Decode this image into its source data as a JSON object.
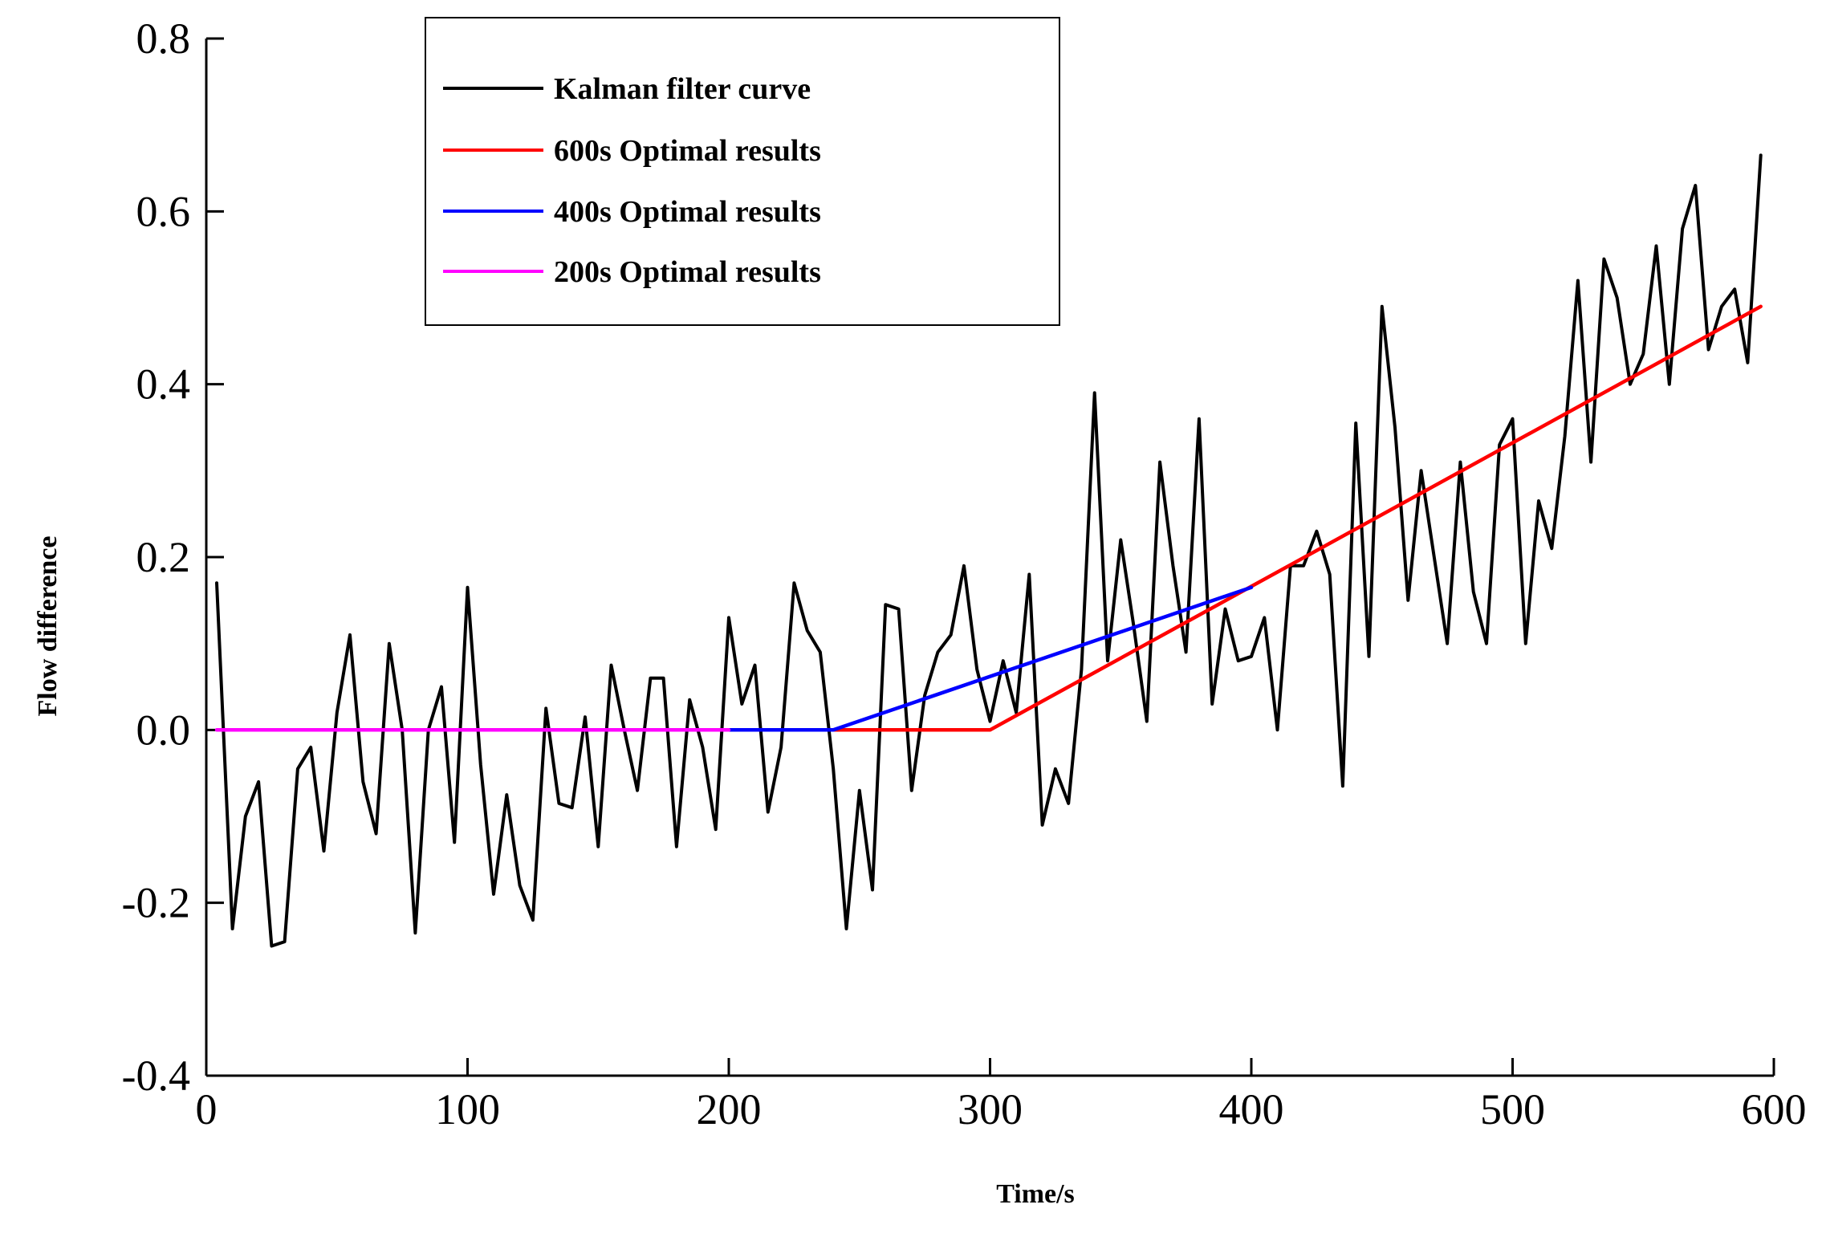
{
  "chart_data": {
    "type": "line",
    "title": "",
    "xlabel": "Time/s",
    "ylabel": "Flow difference",
    "xlim": [
      0,
      600
    ],
    "ylim": [
      -0.4,
      0.8
    ],
    "xticks": [
      0,
      100,
      200,
      300,
      400,
      500,
      600
    ],
    "xtick_labels": [
      "0",
      "100",
      "200",
      "300",
      "400",
      "500",
      "600"
    ],
    "yticks": [
      -0.4,
      -0.2,
      0.0,
      0.2,
      0.4,
      0.6,
      0.8
    ],
    "ytick_labels": [
      "-0.4",
      "-0.2",
      "0.0",
      "0.2",
      "0.4",
      "0.6",
      "0.8"
    ],
    "grid": false,
    "legend_position": "top-left",
    "series": [
      {
        "name": "Kalman filter curve",
        "color": "#000000",
        "x": [
          4,
          10,
          15,
          20,
          25,
          30,
          35,
          40,
          45,
          50,
          55,
          60,
          65,
          70,
          75,
          80,
          85,
          90,
          95,
          100,
          105,
          110,
          115,
          120,
          125,
          130,
          135,
          140,
          145,
          150,
          155,
          160,
          165,
          170,
          175,
          180,
          185,
          190,
          195,
          200,
          205,
          210,
          215,
          220,
          225,
          230,
          235,
          240,
          245,
          250,
          255,
          260,
          265,
          270,
          275,
          280,
          285,
          290,
          295,
          300,
          305,
          310,
          315,
          320,
          325,
          330,
          335,
          340,
          345,
          350,
          355,
          360,
          365,
          370,
          375,
          380,
          385,
          390,
          395,
          400,
          405,
          410,
          415,
          420,
          425,
          430,
          435,
          440,
          445,
          450,
          455,
          460,
          465,
          470,
          475,
          480,
          485,
          490,
          495,
          500,
          505,
          510,
          515,
          520,
          525,
          530,
          535,
          540,
          545,
          550,
          555,
          560,
          565,
          570,
          575,
          580,
          585,
          590,
          595
        ],
        "y": [
          0.17,
          -0.23,
          -0.1,
          -0.06,
          -0.25,
          -0.245,
          -0.045,
          -0.02,
          -0.14,
          0.02,
          0.11,
          -0.06,
          -0.12,
          0.1,
          0.0,
          -0.235,
          0.0,
          0.05,
          -0.13,
          0.165,
          -0.04,
          -0.19,
          -0.075,
          -0.18,
          -0.22,
          0.025,
          -0.085,
          -0.09,
          0.015,
          -0.135,
          0.075,
          0.0,
          -0.07,
          0.06,
          0.06,
          -0.135,
          0.035,
          -0.02,
          -0.115,
          0.13,
          0.03,
          0.075,
          -0.095,
          -0.02,
          0.17,
          0.115,
          0.09,
          -0.045,
          -0.23,
          -0.07,
          -0.185,
          0.145,
          0.14,
          -0.07,
          0.04,
          0.09,
          0.11,
          0.19,
          0.07,
          0.01,
          0.08,
          0.02,
          0.18,
          -0.11,
          -0.045,
          -0.085,
          0.07,
          0.39,
          0.08,
          0.22,
          0.12,
          0.01,
          0.31,
          0.19,
          0.09,
          0.36,
          0.03,
          0.14,
          0.08,
          0.085,
          0.13,
          0.0,
          0.19,
          0.19,
          0.23,
          0.18,
          -0.065,
          0.355,
          0.085,
          0.49,
          0.35,
          0.15,
          0.3,
          0.2,
          0.1,
          0.31,
          0.16,
          0.1,
          0.33,
          0.36,
          0.1,
          0.265,
          0.21,
          0.34,
          0.52,
          0.31,
          0.545,
          0.5,
          0.4,
          0.435,
          0.56,
          0.4,
          0.58,
          0.63,
          0.44,
          0.49,
          0.51,
          0.425,
          0.665
        ]
      },
      {
        "name": "600s Optimal results",
        "color": "#ff0000",
        "x": [
          240,
          300,
          595
        ],
        "y": [
          0.0,
          0.0,
          0.49
        ]
      },
      {
        "name": "400s Optimal results",
        "color": "#0000ff",
        "x": [
          200,
          240,
          400
        ],
        "y": [
          0.0,
          0.0,
          0.165
        ]
      },
      {
        "name": "200s Optimal results",
        "color": "#ff00ff",
        "x": [
          4,
          200
        ],
        "y": [
          0.0,
          0.0
        ]
      }
    ]
  }
}
